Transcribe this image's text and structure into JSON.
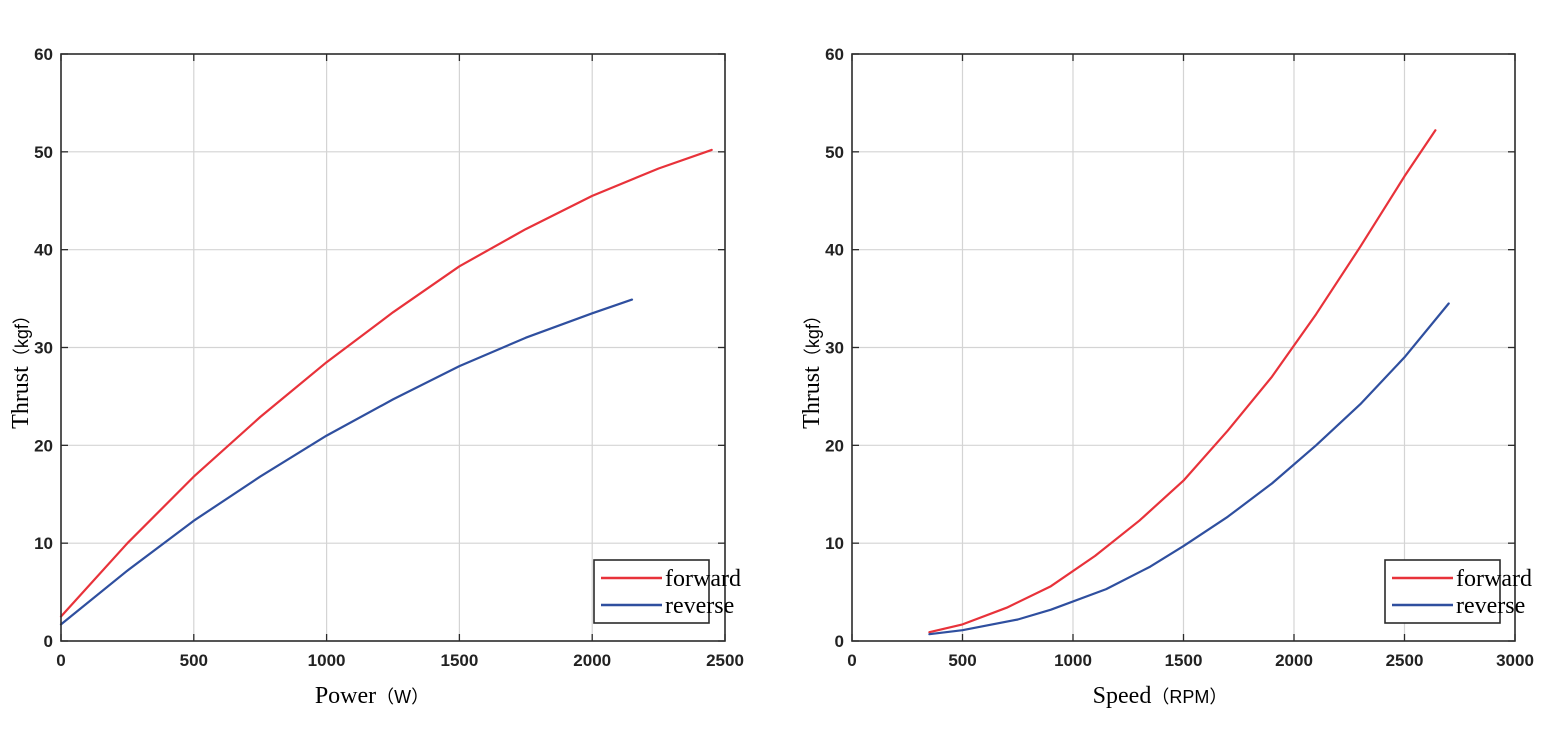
{
  "colors": {
    "forward": "#e8323a",
    "reverse": "#2f4f9f"
  },
  "chart_data": [
    {
      "type": "line",
      "title": "",
      "xlabel": "Power",
      "xunit": "（W）",
      "ylabel": "Thrust",
      "yunit": "（kgf）",
      "xlim": [
        0,
        2500
      ],
      "ylim": [
        0,
        60
      ],
      "xticks": [
        0,
        500,
        1000,
        1500,
        2000,
        2500
      ],
      "yticks": [
        0,
        10,
        20,
        30,
        40,
        50,
        60
      ],
      "grid": true,
      "legend": "bottom-right",
      "series": [
        {
          "name": "forward",
          "x": [
            0,
            250,
            500,
            750,
            1000,
            1250,
            1500,
            1750,
            2000,
            2250,
            2450
          ],
          "y": [
            2.5,
            10,
            16.8,
            22.9,
            28.5,
            33.6,
            38.3,
            42.1,
            45.5,
            48.3,
            50.2
          ]
        },
        {
          "name": "reverse",
          "x": [
            0,
            250,
            500,
            750,
            1000,
            1250,
            1500,
            1750,
            2000,
            2150
          ],
          "y": [
            1.7,
            7.2,
            12.3,
            16.8,
            21.0,
            24.7,
            28.1,
            31.0,
            33.5,
            34.9
          ]
        }
      ]
    },
    {
      "type": "line",
      "title": "",
      "xlabel": "Speed",
      "xunit": "（RPM）",
      "ylabel": "Thrust",
      "yunit": "（kgf）",
      "xlim": [
        0,
        3000
      ],
      "ylim": [
        0,
        60
      ],
      "xticks": [
        0,
        500,
        1000,
        1500,
        2000,
        2500,
        3000
      ],
      "yticks": [
        0,
        10,
        20,
        30,
        40,
        50,
        60
      ],
      "grid": true,
      "legend": "bottom-right",
      "series": [
        {
          "name": "forward",
          "x": [
            350,
            500,
            700,
            900,
            1100,
            1300,
            1500,
            1700,
            1900,
            2100,
            2300,
            2500,
            2640
          ],
          "y": [
            0.9,
            1.7,
            3.4,
            5.6,
            8.7,
            12.3,
            16.4,
            21.5,
            27.0,
            33.4,
            40.3,
            47.5,
            52.2
          ]
        },
        {
          "name": "reverse",
          "x": [
            350,
            500,
            750,
            900,
            1150,
            1350,
            1500,
            1700,
            1900,
            2100,
            2300,
            2500,
            2700
          ],
          "y": [
            0.7,
            1.1,
            2.2,
            3.2,
            5.3,
            7.6,
            9.7,
            12.7,
            16.1,
            20.0,
            24.2,
            29.0,
            34.5
          ]
        }
      ]
    }
  ]
}
